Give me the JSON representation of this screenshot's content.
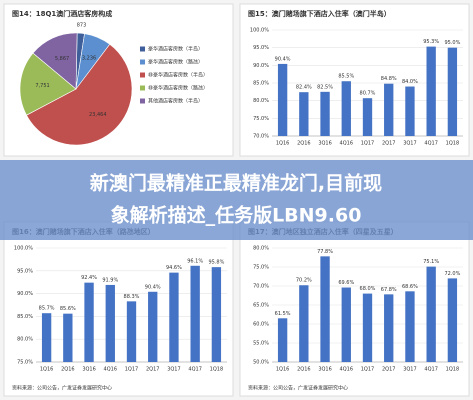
{
  "chart_data": [
    {
      "type": "pie",
      "title": "图14：18Q1澳门酒店客房构成",
      "categories": [
        "豪华酒店客房数（半岛）",
        "豪华酒店客房数（路氹）",
        "非豪华酒店客房数（半岛）",
        "非豪华酒店客房数（路氹）",
        "其他酒店客房数（半岛）"
      ],
      "values": [
        873,
        3236,
        23464,
        7751,
        5867
      ],
      "value_labels": [
        "873",
        "3,236",
        "23,464",
        "7,751",
        "5,867"
      ],
      "colors": [
        "#3f5f9a",
        "#5b8fd0",
        "#c0504d",
        "#9bbb59",
        "#8064a2"
      ]
    },
    {
      "type": "bar",
      "title": "图15：澳门赌场旗下酒店入住率（澳门半岛）",
      "color": "#4472c4",
      "categories": [
        "1Q16",
        "2Q16",
        "3Q16",
        "4Q16",
        "1Q17",
        "2Q17",
        "3Q17",
        "4Q17",
        "1Q18"
      ],
      "values": [
        90.4,
        82.4,
        82.5,
        85.5,
        80.7,
        84.8,
        84.0,
        95.3,
        95.0
      ],
      "value_labels": [
        "90.4%",
        "82.4%",
        "82.5%",
        "85.5%",
        "80.7%",
        "84.8%",
        "84.0%",
        "95.3%",
        "95.0%"
      ],
      "ylim": [
        70,
        100
      ],
      "yticks": [
        {
          "value": 70,
          "label": "70.0%"
        },
        {
          "value": 75,
          "label": "75.0%"
        },
        {
          "value": 80,
          "label": "80.0%"
        },
        {
          "value": 85,
          "label": "85.0%"
        },
        {
          "value": 90,
          "label": "90.0%"
        },
        {
          "value": 95,
          "label": "95.0%"
        },
        {
          "value": 100,
          "label": "100.0%"
        }
      ],
      "grid": true
    },
    {
      "type": "bar",
      "title": "图16：澳门赌场旗下酒店入住率（路氹地区）",
      "color": "#4472c4",
      "categories": [
        "1Q16",
        "2Q16",
        "3Q16",
        "4Q16",
        "1Q17",
        "2Q17",
        "3Q17",
        "4Q17",
        "1Q18"
      ],
      "values": [
        85.7,
        85.6,
        92.4,
        91.9,
        88.3,
        90.4,
        94.6,
        96.1,
        95.8
      ],
      "value_labels": [
        "85.7%",
        "85.6%",
        "92.4%",
        "91.9%",
        "88.3%",
        "90.4%",
        "94.6%",
        "96.1%",
        "95.8%"
      ],
      "ylim": [
        75,
        100
      ],
      "yticks": [
        {
          "value": 75,
          "label": "75.0%"
        },
        {
          "value": 80,
          "label": "80.0%"
        },
        {
          "value": 85,
          "label": "85.0%"
        },
        {
          "value": 90,
          "label": "90.0%"
        },
        {
          "value": 95,
          "label": "95.0%"
        },
        {
          "value": 100,
          "label": "100.0%"
        }
      ],
      "grid": true,
      "source": "资料来源：公司公告，广发证券发展研究中心"
    },
    {
      "type": "bar",
      "title": "图17：澳门地区独立酒店入住率（四星及五星）",
      "color": "#4472c4",
      "categories": [
        "1Q16",
        "2Q16",
        "3Q16",
        "4Q16",
        "1Q17",
        "2Q17",
        "3Q17",
        "4Q17",
        "1Q18"
      ],
      "values": [
        61.5,
        70.2,
        77.8,
        69.6,
        68.0,
        67.8,
        68.6,
        75.1,
        72.0
      ],
      "value_labels": [
        "61.5%",
        "70.2%",
        "77.8%",
        "69.6%",
        "68.0%",
        "67.8%",
        "68.6%",
        "75.1%",
        "72.0%"
      ],
      "ylim": [
        50,
        80
      ],
      "yticks": [
        {
          "value": 50,
          "label": "50.0%"
        },
        {
          "value": 55,
          "label": "55.0%"
        },
        {
          "value": 60,
          "label": "60.0%"
        },
        {
          "value": 65,
          "label": "65.0%"
        },
        {
          "value": 70,
          "label": "70.0%"
        },
        {
          "value": 75,
          "label": "75.0%"
        },
        {
          "value": 80,
          "label": "80.0%"
        }
      ],
      "grid": true,
      "source": "资料来源：公司公告，广发证券发展研究中心"
    }
  ],
  "banner": {
    "lines": [
      "新澳门最精准正最精准龙门,目前现",
      "象解析描述_任务版LBN9.60"
    ]
  }
}
